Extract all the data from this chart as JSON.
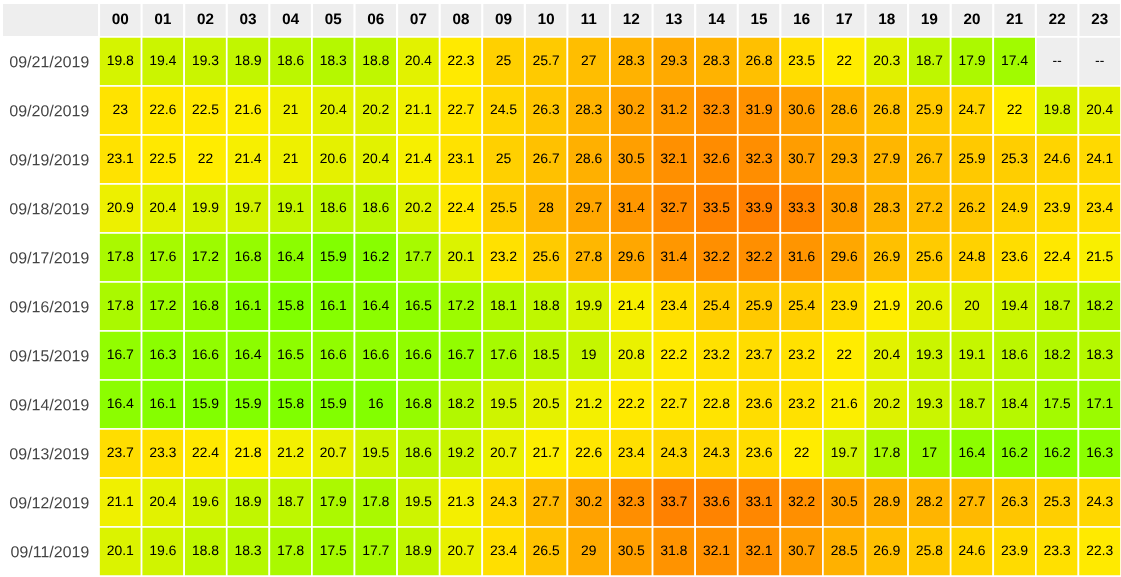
{
  "chart_data": {
    "type": "heatmap",
    "categories": [
      "00",
      "01",
      "02",
      "03",
      "04",
      "05",
      "06",
      "07",
      "08",
      "09",
      "10",
      "11",
      "12",
      "13",
      "14",
      "15",
      "16",
      "17",
      "18",
      "19",
      "20",
      "21",
      "22",
      "23"
    ],
    "y_categories": [
      "09/21/2019",
      "09/20/2019",
      "09/19/2019",
      "09/18/2019",
      "09/17/2019",
      "09/16/2019",
      "09/15/2019",
      "09/14/2019",
      "09/13/2019",
      "09/12/2019",
      "09/11/2019"
    ],
    "cells": [
      [
        19.8,
        19.4,
        19.3,
        18.9,
        18.6,
        18.3,
        18.8,
        20.4,
        22.3,
        25,
        25.7,
        27,
        28.3,
        29.3,
        28.3,
        26.8,
        23.5,
        22,
        20.3,
        18.7,
        17.9,
        17.4,
        null,
        null
      ],
      [
        23,
        22.6,
        22.5,
        21.6,
        21,
        20.4,
        20.2,
        21.1,
        22.7,
        24.5,
        26.3,
        28.3,
        30.2,
        31.2,
        32.3,
        31.9,
        30.6,
        28.6,
        26.8,
        25.9,
        24.7,
        22,
        19.8,
        20.4
      ],
      [
        23.1,
        22.5,
        22,
        21.4,
        21,
        20.6,
        20.4,
        21.4,
        23.1,
        25,
        26.7,
        28.6,
        30.5,
        32.1,
        32.6,
        32.3,
        30.7,
        29.3,
        27.9,
        26.7,
        25.9,
        25.3,
        24.6,
        24.1
      ],
      [
        20.9,
        20.4,
        19.9,
        19.7,
        19.1,
        18.6,
        18.6,
        20.2,
        22.4,
        25.5,
        28,
        29.7,
        31.4,
        32.7,
        33.5,
        33.9,
        33.3,
        30.8,
        28.3,
        27.2,
        26.2,
        24.9,
        23.9,
        23.4
      ],
      [
        17.8,
        17.6,
        17.2,
        16.8,
        16.4,
        15.9,
        16.2,
        17.7,
        20.1,
        23.2,
        25.6,
        27.8,
        29.6,
        31.4,
        32.2,
        32.2,
        31.6,
        29.6,
        26.9,
        25.6,
        24.8,
        23.6,
        22.4,
        21.5
      ],
      [
        17.8,
        17.2,
        16.8,
        16.1,
        15.8,
        16.1,
        16.4,
        16.5,
        17.2,
        18.1,
        18.8,
        19.9,
        21.4,
        23.4,
        25.4,
        25.9,
        25.4,
        23.9,
        21.9,
        20.6,
        20,
        19.4,
        18.7,
        18.2
      ],
      [
        16.7,
        16.3,
        16.6,
        16.4,
        16.5,
        16.6,
        16.6,
        16.6,
        16.7,
        17.6,
        18.5,
        19,
        20.8,
        22.2,
        23.2,
        23.7,
        23.2,
        22,
        20.4,
        19.3,
        19.1,
        18.6,
        18.2,
        18.3
      ],
      [
        16.4,
        16.1,
        15.9,
        15.9,
        15.8,
        15.9,
        16,
        16.8,
        18.2,
        19.5,
        20.5,
        21.2,
        22.2,
        22.7,
        22.8,
        23.6,
        23.2,
        21.6,
        20.2,
        19.3,
        18.7,
        18.4,
        17.5,
        17.1
      ],
      [
        23.7,
        23.3,
        22.4,
        21.8,
        21.2,
        20.7,
        19.5,
        18.6,
        19.2,
        20.7,
        21.7,
        22.6,
        23.4,
        24.3,
        24.3,
        23.6,
        22,
        19.7,
        17.8,
        17,
        16.4,
        16.2,
        16.2,
        16.3
      ],
      [
        21.1,
        20.4,
        19.6,
        18.9,
        18.7,
        17.9,
        17.8,
        19.5,
        21.3,
        24.3,
        27.7,
        30.2,
        32.3,
        33.7,
        33.6,
        33.1,
        32.2,
        30.5,
        28.9,
        28.2,
        27.7,
        26.3,
        25.3,
        24.3
      ],
      [
        20.1,
        19.6,
        18.8,
        18.3,
        17.8,
        17.5,
        17.7,
        18.9,
        20.7,
        23.4,
        26.5,
        29,
        30.5,
        31.8,
        32.1,
        32.1,
        30.7,
        28.5,
        26.9,
        25.8,
        24.6,
        23.9,
        23.3,
        22.3
      ]
    ],
    "cell_labels": [
      [
        "19.8",
        "19.4",
        "19.3",
        "18.9",
        "18.6",
        "18.3",
        "18.8",
        "20.4",
        "22.3",
        "25",
        "25.7",
        "27",
        "28.3",
        "29.3",
        "28.3",
        "26.8",
        "23.5",
        "22",
        "20.3",
        "18.7",
        "17.9",
        "17.4",
        "--",
        "--"
      ],
      [
        "23",
        "22.6",
        "22.5",
        "21.6",
        "21",
        "20.4",
        "20.2",
        "21.1",
        "22.7",
        "24.5",
        "26.3",
        "28.3",
        "30.2",
        "31.2",
        "32.3",
        "31.9",
        "30.6",
        "28.6",
        "26.8",
        "25.9",
        "24.7",
        "22",
        "19.8",
        "20.4"
      ],
      [
        "23.1",
        "22.5",
        "22",
        "21.4",
        "21",
        "20.6",
        "20.4",
        "21.4",
        "23.1",
        "25",
        "26.7",
        "28.6",
        "30.5",
        "32.1",
        "32.6",
        "32.3",
        "30.7",
        "29.3",
        "27.9",
        "26.7",
        "25.9",
        "25.3",
        "24.6",
        "24.1"
      ],
      [
        "20.9",
        "20.4",
        "19.9",
        "19.7",
        "19.1",
        "18.6",
        "18.6",
        "20.2",
        "22.4",
        "25.5",
        "28",
        "29.7",
        "31.4",
        "32.7",
        "33.5",
        "33.9",
        "33.3",
        "30.8",
        "28.3",
        "27.2",
        "26.2",
        "24.9",
        "23.9",
        "23.4"
      ],
      [
        "17.8",
        "17.6",
        "17.2",
        "16.8",
        "16.4",
        "15.9",
        "16.2",
        "17.7",
        "20.1",
        "23.2",
        "25.6",
        "27.8",
        "29.6",
        "31.4",
        "32.2",
        "32.2",
        "31.6",
        "29.6",
        "26.9",
        "25.6",
        "24.8",
        "23.6",
        "22.4",
        "21.5"
      ],
      [
        "17.8",
        "17.2",
        "16.8",
        "16.1",
        "15.8",
        "16.1",
        "16.4",
        "16.5",
        "17.2",
        "18.1",
        "18.8",
        "19.9",
        "21.4",
        "23.4",
        "25.4",
        "25.9",
        "25.4",
        "23.9",
        "21.9",
        "20.6",
        "20",
        "19.4",
        "18.7",
        "18.2"
      ],
      [
        "16.7",
        "16.3",
        "16.6",
        "16.4",
        "16.5",
        "16.6",
        "16.6",
        "16.6",
        "16.7",
        "17.6",
        "18.5",
        "19",
        "20.8",
        "22.2",
        "23.2",
        "23.7",
        "23.2",
        "22",
        "20.4",
        "19.3",
        "19.1",
        "18.6",
        "18.2",
        "18.3"
      ],
      [
        "16.4",
        "16.1",
        "15.9",
        "15.9",
        "15.8",
        "15.9",
        "16",
        "16.8",
        "18.2",
        "19.5",
        "20.5",
        "21.2",
        "22.2",
        "22.7",
        "22.8",
        "23.6",
        "23.2",
        "21.6",
        "20.2",
        "19.3",
        "18.7",
        "18.4",
        "17.5",
        "17.1"
      ],
      [
        "23.7",
        "23.3",
        "22.4",
        "21.8",
        "21.2",
        "20.7",
        "19.5",
        "18.6",
        "19.2",
        "20.7",
        "21.7",
        "22.6",
        "23.4",
        "24.3",
        "24.3",
        "23.6",
        "22",
        "19.7",
        "17.8",
        "17",
        "16.4",
        "16.2",
        "16.2",
        "16.3"
      ],
      [
        "21.1",
        "20.4",
        "19.6",
        "18.9",
        "18.7",
        "17.9",
        "17.8",
        "19.5",
        "21.3",
        "24.3",
        "27.7",
        "30.2",
        "32.3",
        "33.7",
        "33.6",
        "33.1",
        "32.2",
        "30.5",
        "28.9",
        "28.2",
        "27.7",
        "26.3",
        "25.3",
        "24.3"
      ],
      [
        "20.1",
        "19.6",
        "18.8",
        "18.3",
        "17.8",
        "17.5",
        "17.7",
        "18.9",
        "20.7",
        "23.4",
        "26.5",
        "29",
        "30.5",
        "31.8",
        "32.1",
        "32.1",
        "30.7",
        "28.5",
        "26.9",
        "25.8",
        "24.6",
        "23.9",
        "23.3",
        "22.3"
      ]
    ],
    "data_labels": true
  }
}
